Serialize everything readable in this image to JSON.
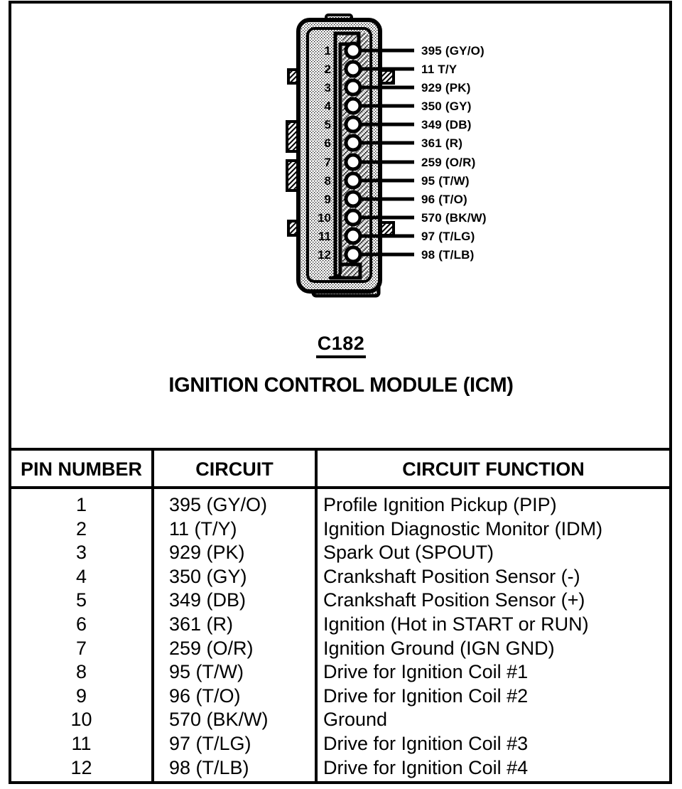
{
  "page": {
    "connector_id": "C182",
    "connector_title": "IGNITION CONTROL MODULE (ICM)"
  },
  "connector": {
    "pins": [
      {
        "number": "1",
        "label": "395 (GY/O)"
      },
      {
        "number": "2",
        "label": "11 T/Y"
      },
      {
        "number": "3",
        "label": "929 (PK)"
      },
      {
        "number": "4",
        "label": "350 (GY)"
      },
      {
        "number": "5",
        "label": "349 (DB)"
      },
      {
        "number": "6",
        "label": "361 (R)"
      },
      {
        "number": "7",
        "label": "259 (O/R)"
      },
      {
        "number": "8",
        "label": "95 (T/W)"
      },
      {
        "number": "9",
        "label": "96 (T/O)"
      },
      {
        "number": "10",
        "label": "570 (BK/W)"
      },
      {
        "number": "11",
        "label": "97 (T/LG)"
      },
      {
        "number": "12",
        "label": "98 (T/LB)"
      }
    ]
  },
  "table": {
    "headers": [
      "PIN NUMBER",
      "CIRCUIT",
      "CIRCUIT FUNCTION"
    ],
    "rows": [
      [
        "1",
        "395 (GY/O)",
        "Profile Ignition Pickup (PIP)"
      ],
      [
        "2",
        "11 (T/Y)",
        "Ignition Diagnostic Monitor (IDM)"
      ],
      [
        "3",
        "929 (PK)",
        "Spark Out (SPOUT)"
      ],
      [
        "4",
        "350 (GY)",
        "Crankshaft Position Sensor (-)"
      ],
      [
        "5",
        "349 (DB)",
        "Crankshaft Position Sensor (+)"
      ],
      [
        "6",
        "361 (R)",
        "Ignition (Hot in START or RUN)"
      ],
      [
        "7",
        "259 (O/R)",
        "Ignition Ground (IGN GND)"
      ],
      [
        "8",
        "95 (T/W)",
        "Drive for Ignition Coil #1"
      ],
      [
        "9",
        "96 (T/O)",
        "Drive for Ignition Coil #2"
      ],
      [
        "10",
        "570 (BK/W)",
        "Ground"
      ],
      [
        "11",
        "97 (T/LG)",
        "Drive for Ignition Coil #3"
      ],
      [
        "12",
        "98 (T/LB)",
        "Drive for Ignition Coil #4"
      ]
    ]
  },
  "colors": {
    "ink": "#000000",
    "paper": "#ffffff"
  }
}
